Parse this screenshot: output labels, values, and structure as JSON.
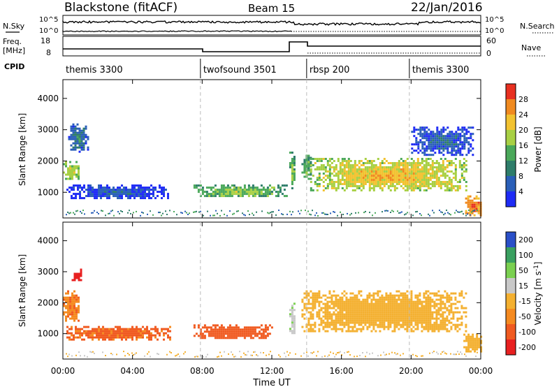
{
  "header": {
    "title": "Blackstone (fitACF)",
    "beam": "Beam 15",
    "date": "22/Jan/2016"
  },
  "params": {
    "nsky_label": "N.Sky",
    "nsearch_label": "N.Search",
    "freq_label": "Freq.",
    "freq_unit": "[MHz]",
    "nave_label": "Nave",
    "cpid_label": "CPID",
    "nsky_ticks": [
      "10^5",
      "10^0"
    ],
    "nsearch_ticks": [
      "10^5",
      "10^0"
    ],
    "freq_ticks": [
      "18",
      "8"
    ],
    "nave_ticks": [
      "60",
      "0"
    ],
    "cpid_segments": [
      {
        "label": "themis 3300",
        "start_hour": 0,
        "end_hour": 7.9
      },
      {
        "label": "twofsound 3501",
        "start_hour": 7.9,
        "end_hour": 14.0
      },
      {
        "label": "rbsp 200",
        "start_hour": 14.0,
        "end_hour": 19.9
      },
      {
        "label": "themis 3300",
        "start_hour": 19.9,
        "end_hour": 24
      }
    ]
  },
  "axes": {
    "xlabel": "Time UT",
    "x_ticks": [
      "00:00",
      "04:00",
      "08:00",
      "12:00",
      "16:00",
      "20:00",
      "00:00"
    ],
    "ylabel": "Slant Range [km]",
    "y_ticks": [
      "1000",
      "2000",
      "3000",
      "4000"
    ],
    "power_label": "Power [dB]",
    "power_ticks": [
      "4",
      "8",
      "12",
      "16",
      "20",
      "24",
      "28"
    ],
    "velocity_label": "Velocity [m s",
    "velocity_sup": "-1",
    "velocity_label_end": "]",
    "velocity_ticks": [
      "-200",
      "-100",
      "-50",
      "-15",
      "15",
      "50",
      "100",
      "200"
    ]
  },
  "colors": {
    "power_scale": [
      "#1e2bf5",
      "#2a5fb8",
      "#2e7d6a",
      "#4aa85a",
      "#a8d044",
      "#f2c230",
      "#f08a20",
      "#e83020"
    ],
    "velocity_scale": [
      "#e82020",
      "#f05a20",
      "#f58a20",
      "#f4b030",
      "#c8c8c8",
      "#7ad050",
      "#3aa060",
      "#2a4fc8"
    ]
  },
  "chart_data": [
    {
      "type": "heatmap",
      "title": "Power",
      "xlabel": "Time UT",
      "ylabel": "Slant Range [km]",
      "xlim": [
        0,
        24
      ],
      "ylim": [
        180,
        4600
      ],
      "colorbar_label": "Power [dB]",
      "colorbar_range": [
        0,
        30
      ],
      "regions": [
        {
          "t": [
            0.0,
            0.9
          ],
          "r": [
            1400,
            2000
          ],
          "value": 18
        },
        {
          "t": [
            0.3,
            1.4
          ],
          "r": [
            2300,
            3200
          ],
          "value": 8
        },
        {
          "t": [
            0.2,
            6.0
          ],
          "r": [
            800,
            1250
          ],
          "value": 5
        },
        {
          "t": [
            7.5,
            12.8
          ],
          "r": [
            850,
            1250
          ],
          "value": 15
        },
        {
          "t": [
            13.0,
            13.3
          ],
          "r": [
            1000,
            2300
          ],
          "value": 14
        },
        {
          "t": [
            13.7,
            14.2
          ],
          "r": [
            1400,
            2200
          ],
          "value": 14
        },
        {
          "t": [
            14.2,
            23.2
          ],
          "r": [
            1050,
            2100
          ],
          "value": 20
        },
        {
          "t": [
            20.0,
            23.5
          ],
          "r": [
            2200,
            3100
          ],
          "value": 6
        },
        {
          "t": [
            23.1,
            24.0
          ],
          "r": [
            250,
            900
          ],
          "value": 26
        }
      ]
    },
    {
      "type": "heatmap",
      "title": "Velocity",
      "xlabel": "Time UT",
      "ylabel": "Slant Range [km]",
      "xlim": [
        0,
        24
      ],
      "ylim": [
        180,
        4600
      ],
      "colorbar_label": "Velocity [m s^-1]",
      "colorbar_range": [
        -200,
        200
      ],
      "regions": [
        {
          "t": [
            0.0,
            0.9
          ],
          "r": [
            1400,
            2400
          ],
          "value": -40
        },
        {
          "t": [
            0.5,
            1.0
          ],
          "r": [
            2700,
            3100
          ],
          "value": -150
        },
        {
          "t": [
            0.2,
            6.2
          ],
          "r": [
            800,
            1250
          ],
          "value": -60
        },
        {
          "t": [
            7.5,
            12.0
          ],
          "r": [
            850,
            1300
          ],
          "value": -70
        },
        {
          "t": [
            13.0,
            13.3
          ],
          "r": [
            1000,
            2000
          ],
          "value": 40
        },
        {
          "t": [
            13.7,
            23.2
          ],
          "r": [
            1050,
            2400
          ],
          "value": 0
        },
        {
          "t": [
            23.0,
            24.0
          ],
          "r": [
            400,
            1000
          ],
          "value": 0
        }
      ]
    }
  ]
}
